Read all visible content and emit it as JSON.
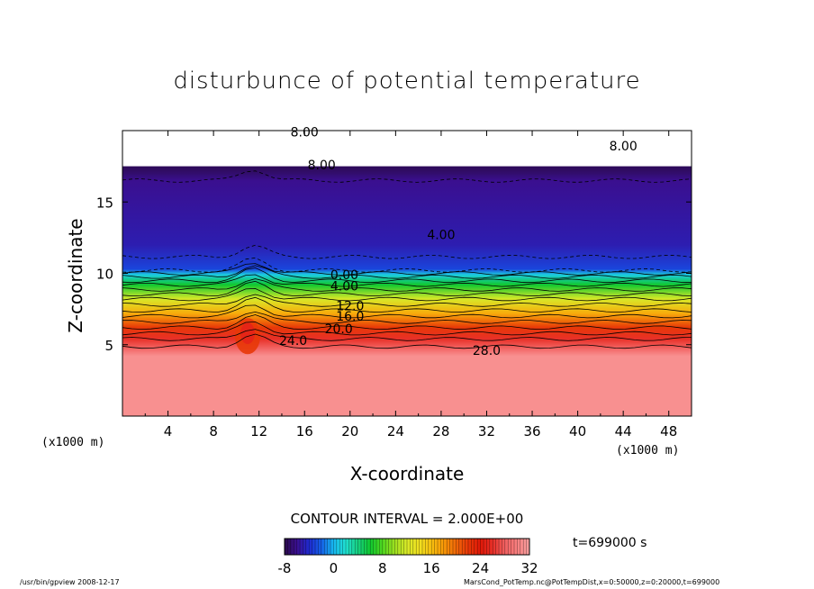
{
  "chart_data": {
    "type": "heatmap",
    "title": "disturbunce of potential temperature",
    "xlabel": "X-coordinate",
    "ylabel": "Z-coordinate",
    "x_unit_left": "(x1000 m)",
    "x_unit_right": "(x1000 m)",
    "xlim": [
      0,
      50
    ],
    "ylim": [
      0,
      20
    ],
    "x_ticks": [
      "4",
      "8",
      "12",
      "16",
      "20",
      "24",
      "28",
      "32",
      "36",
      "40",
      "44",
      "48"
    ],
    "y_ticks": [
      "5",
      "10",
      "15"
    ],
    "contour_interval": "CONTOUR INTERVAL = 2.000E+00",
    "time": "t=699000 s",
    "colorbar": {
      "min": -8,
      "max": 32,
      "tick_labels": [
        "-8",
        "0",
        "8",
        "16",
        "24",
        "32"
      ]
    },
    "profile": [
      {
        "z": 0.0,
        "v": 31
      },
      {
        "z": 4.2,
        "v": 31
      },
      {
        "z": 4.6,
        "v": 29
      },
      {
        "z": 5.4,
        "v": 26
      },
      {
        "z": 6.2,
        "v": 22
      },
      {
        "z": 7.2,
        "v": 17
      },
      {
        "z": 8.2,
        "v": 12
      },
      {
        "z": 9.2,
        "v": 6
      },
      {
        "z": 9.9,
        "v": 1
      },
      {
        "z": 10.3,
        "v": -3
      },
      {
        "z": 12.0,
        "v": -5
      },
      {
        "z": 16.5,
        "v": -6
      },
      {
        "z": 17.0,
        "v": -7
      },
      {
        "z": 17.4,
        "v": -7.5
      }
    ],
    "upper_white_from_z": 17.5,
    "contour_labels": [
      {
        "text": "8.00",
        "x": 16,
        "z": 19.6
      },
      {
        "text": "8.00",
        "x": 17.5,
        "z": 17.3
      },
      {
        "text": "8.00",
        "x": 44,
        "z": 18.6
      },
      {
        "text": "4.00",
        "x": 28,
        "z": 12.4
      },
      {
        "text": "0.00",
        "x": 19.5,
        "z": 9.6
      },
      {
        "text": "4.00",
        "x": 19.5,
        "z": 8.8
      },
      {
        "text": "12.0",
        "x": 20,
        "z": 7.4
      },
      {
        "text": "16.0",
        "x": 20,
        "z": 6.7
      },
      {
        "text": "20.0",
        "x": 19,
        "z": 5.8
      },
      {
        "text": "24.0",
        "x": 15,
        "z": 5.0
      },
      {
        "text": "28.0",
        "x": 32,
        "z": 4.3
      }
    ]
  },
  "footer": {
    "left": "/usr/bin/gpview   2008-12-17",
    "right": "MarsCond_PotTemp.nc@PotTempDist,x=0:50000,z=0:20000,t=699000"
  }
}
